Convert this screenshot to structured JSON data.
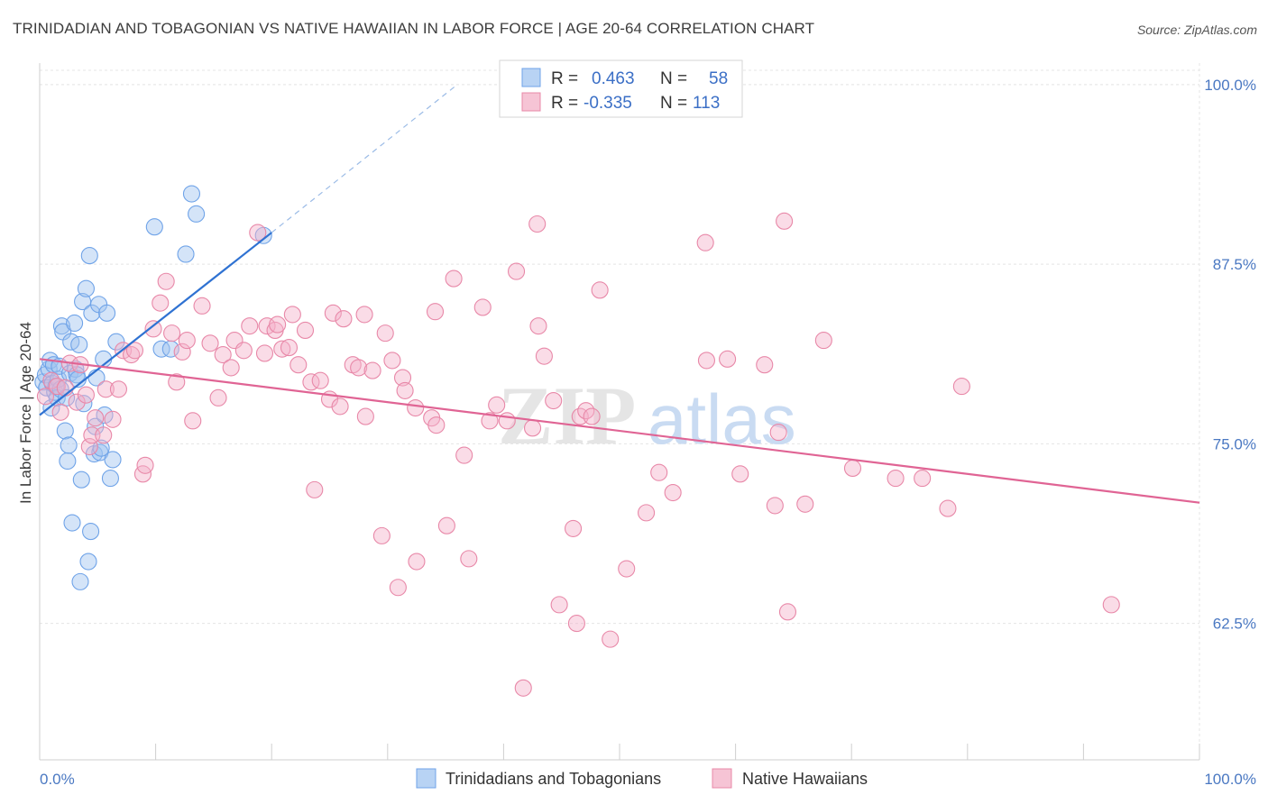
{
  "header": {
    "title": "TRINIDADIAN AND TOBAGONIAN VS NATIVE HAWAIIAN IN LABOR FORCE | AGE 20-64 CORRELATION CHART",
    "source": "Source: ZipAtlas.com"
  },
  "watermark": {
    "zip": "ZIP",
    "atlas": "atlas"
  },
  "legend": {
    "r_label": "R =",
    "n_label": "N =",
    "series": [
      {
        "name": "Trinidadians and Tobagonians",
        "r": "0.463",
        "n": "58",
        "color": "#6fa3e8",
        "fill": "#b8d3f4"
      },
      {
        "name": "Native Hawaiians",
        "r": "-0.335",
        "n": "113",
        "color": "#e888a8",
        "fill": "#f6c4d5"
      }
    ]
  },
  "chart_data": {
    "type": "scatter",
    "title": "TRINIDADIAN AND TOBAGONIAN VS NATIVE HAWAIIAN IN LABOR FORCE | AGE 20-64 CORRELATION CHART",
    "ylabel": "In Labor Force | Age 20-64",
    "xlabel": "",
    "xlim": [
      0,
      100
    ],
    "ylim": [
      53,
      101.5
    ],
    "x_ticks": [
      "0.0%",
      "100.0%"
    ],
    "y_ticks": [
      {
        "value": 100,
        "label": "100.0%"
      },
      {
        "value": 87.5,
        "label": "87.5%"
      },
      {
        "value": 75,
        "label": "75.0%"
      },
      {
        "value": 62.5,
        "label": "62.5%"
      }
    ],
    "grid": true,
    "series": [
      {
        "name": "Trinidadians and Tobagonians",
        "color": "#4a86e0",
        "trend": {
          "x": [
            0,
            20
          ],
          "y": [
            77.0,
            89.7
          ],
          "extend_to": [
            36,
            100
          ]
        },
        "points": [
          [
            0.3,
            79.3
          ],
          [
            0.5,
            79.8
          ],
          [
            0.6,
            78.9
          ],
          [
            0.8,
            80.2
          ],
          [
            0.9,
            80.8
          ],
          [
            1.0,
            77.5
          ],
          [
            1.1,
            79.2
          ],
          [
            1.2,
            80.5
          ],
          [
            1.3,
            78.6
          ],
          [
            1.4,
            79.0
          ],
          [
            1.5,
            78.2
          ],
          [
            1.6,
            79.5
          ],
          [
            1.7,
            80.4
          ],
          [
            1.8,
            78.8
          ],
          [
            1.9,
            83.2
          ],
          [
            2.0,
            82.8
          ],
          [
            2.2,
            75.9
          ],
          [
            2.3,
            78.2
          ],
          [
            2.4,
            73.8
          ],
          [
            2.5,
            74.9
          ],
          [
            2.6,
            79.9
          ],
          [
            2.7,
            82.1
          ],
          [
            2.8,
            69.5
          ],
          [
            3.0,
            83.4
          ],
          [
            3.1,
            80.2
          ],
          [
            3.2,
            79.8
          ],
          [
            3.3,
            79.5
          ],
          [
            3.4,
            81.9
          ],
          [
            3.5,
            65.4
          ],
          [
            3.6,
            72.5
          ],
          [
            3.7,
            84.9
          ],
          [
            3.8,
            77.8
          ],
          [
            4.0,
            85.8
          ],
          [
            4.2,
            66.8
          ],
          [
            4.3,
            88.1
          ],
          [
            4.4,
            68.9
          ],
          [
            4.5,
            84.1
          ],
          [
            4.7,
            74.3
          ],
          [
            4.8,
            76.2
          ],
          [
            4.9,
            79.6
          ],
          [
            5.1,
            84.7
          ],
          [
            5.2,
            74.4
          ],
          [
            5.3,
            74.7
          ],
          [
            5.5,
            80.9
          ],
          [
            5.6,
            77.0
          ],
          [
            5.8,
            84.1
          ],
          [
            6.1,
            72.6
          ],
          [
            6.3,
            73.9
          ],
          [
            6.6,
            82.1
          ],
          [
            9.9,
            90.1
          ],
          [
            10.5,
            81.6
          ],
          [
            11.3,
            81.6
          ],
          [
            12.6,
            88.2
          ],
          [
            13.1,
            92.4
          ],
          [
            13.5,
            91.0
          ],
          [
            19.3,
            89.5
          ]
        ]
      },
      {
        "name": "Native Hawaiians",
        "color": "#e36f98",
        "trend": {
          "x": [
            0,
            100
          ],
          "y": [
            80.9,
            70.9
          ]
        },
        "points": [
          [
            0.5,
            78.3
          ],
          [
            1.0,
            79.4
          ],
          [
            1.5,
            79.0
          ],
          [
            1.8,
            77.2
          ],
          [
            2.2,
            78.9
          ],
          [
            2.6,
            80.6
          ],
          [
            3.2,
            77.9
          ],
          [
            3.5,
            80.5
          ],
          [
            4.0,
            78.4
          ],
          [
            4.3,
            74.8
          ],
          [
            4.5,
            75.6
          ],
          [
            4.8,
            76.8
          ],
          [
            5.5,
            75.6
          ],
          [
            5.7,
            78.8
          ],
          [
            6.3,
            76.7
          ],
          [
            6.8,
            78.8
          ],
          [
            7.2,
            81.5
          ],
          [
            7.9,
            81.2
          ],
          [
            8.2,
            81.5
          ],
          [
            8.9,
            72.9
          ],
          [
            9.1,
            73.5
          ],
          [
            9.8,
            83.0
          ],
          [
            10.4,
            84.8
          ],
          [
            10.9,
            86.3
          ],
          [
            11.4,
            82.7
          ],
          [
            11.8,
            79.3
          ],
          [
            12.3,
            81.4
          ],
          [
            12.7,
            82.2
          ],
          [
            13.2,
            76.6
          ],
          [
            14.0,
            84.6
          ],
          [
            14.7,
            82.0
          ],
          [
            15.4,
            78.2
          ],
          [
            15.8,
            81.2
          ],
          [
            16.5,
            80.3
          ],
          [
            16.8,
            82.2
          ],
          [
            17.6,
            81.5
          ],
          [
            18.1,
            83.2
          ],
          [
            18.8,
            89.7
          ],
          [
            19.4,
            81.3
          ],
          [
            19.6,
            83.2
          ],
          [
            20.3,
            82.9
          ],
          [
            20.5,
            83.3
          ],
          [
            20.9,
            81.6
          ],
          [
            21.5,
            81.7
          ],
          [
            21.8,
            84.0
          ],
          [
            22.3,
            80.5
          ],
          [
            22.9,
            82.9
          ],
          [
            23.4,
            79.3
          ],
          [
            23.7,
            71.8
          ],
          [
            24.2,
            79.4
          ],
          [
            25.0,
            78.1
          ],
          [
            25.3,
            84.1
          ],
          [
            25.9,
            77.6
          ],
          [
            26.2,
            83.7
          ],
          [
            27.0,
            80.5
          ],
          [
            27.5,
            80.3
          ],
          [
            28.0,
            84.0
          ],
          [
            28.1,
            76.9
          ],
          [
            28.7,
            80.1
          ],
          [
            29.5,
            68.6
          ],
          [
            29.8,
            82.7
          ],
          [
            30.4,
            80.8
          ],
          [
            30.9,
            65.0
          ],
          [
            31.3,
            79.6
          ],
          [
            31.5,
            78.7
          ],
          [
            32.4,
            77.5
          ],
          [
            32.5,
            66.8
          ],
          [
            33.8,
            76.8
          ],
          [
            34.1,
            84.2
          ],
          [
            34.2,
            76.3
          ],
          [
            35.1,
            69.3
          ],
          [
            35.7,
            86.5
          ],
          [
            36.6,
            74.2
          ],
          [
            37.0,
            67.0
          ],
          [
            38.2,
            84.5
          ],
          [
            38.8,
            76.6
          ],
          [
            39.4,
            77.7
          ],
          [
            40.3,
            76.6
          ],
          [
            41.1,
            87.0
          ],
          [
            41.7,
            58.0
          ],
          [
            42.5,
            76.1
          ],
          [
            42.9,
            90.3
          ],
          [
            43.0,
            83.2
          ],
          [
            43.5,
            81.1
          ],
          [
            44.3,
            78.0
          ],
          [
            44.8,
            63.8
          ],
          [
            46.0,
            69.1
          ],
          [
            46.3,
            62.5
          ],
          [
            46.6,
            76.9
          ],
          [
            47.1,
            77.3
          ],
          [
            47.6,
            76.9
          ],
          [
            48.3,
            85.7
          ],
          [
            49.2,
            61.4
          ],
          [
            50.6,
            66.3
          ],
          [
            52.3,
            70.2
          ],
          [
            53.4,
            73.0
          ],
          [
            54.6,
            71.6
          ],
          [
            57.4,
            89.0
          ],
          [
            57.5,
            80.8
          ],
          [
            59.3,
            80.9
          ],
          [
            60.4,
            72.9
          ],
          [
            62.5,
            80.5
          ],
          [
            63.4,
            70.7
          ],
          [
            63.7,
            75.8
          ],
          [
            64.5,
            63.3
          ],
          [
            64.2,
            90.5
          ],
          [
            66.0,
            70.8
          ],
          [
            67.6,
            82.2
          ],
          [
            70.1,
            73.3
          ],
          [
            73.8,
            72.6
          ],
          [
            76.1,
            72.6
          ],
          [
            78.3,
            70.5
          ],
          [
            79.5,
            79.0
          ],
          [
            92.4,
            63.8
          ]
        ]
      }
    ]
  },
  "bottom_legend": {
    "items": [
      "Trinidadians and Tobagonians",
      "Native Hawaiians"
    ]
  }
}
